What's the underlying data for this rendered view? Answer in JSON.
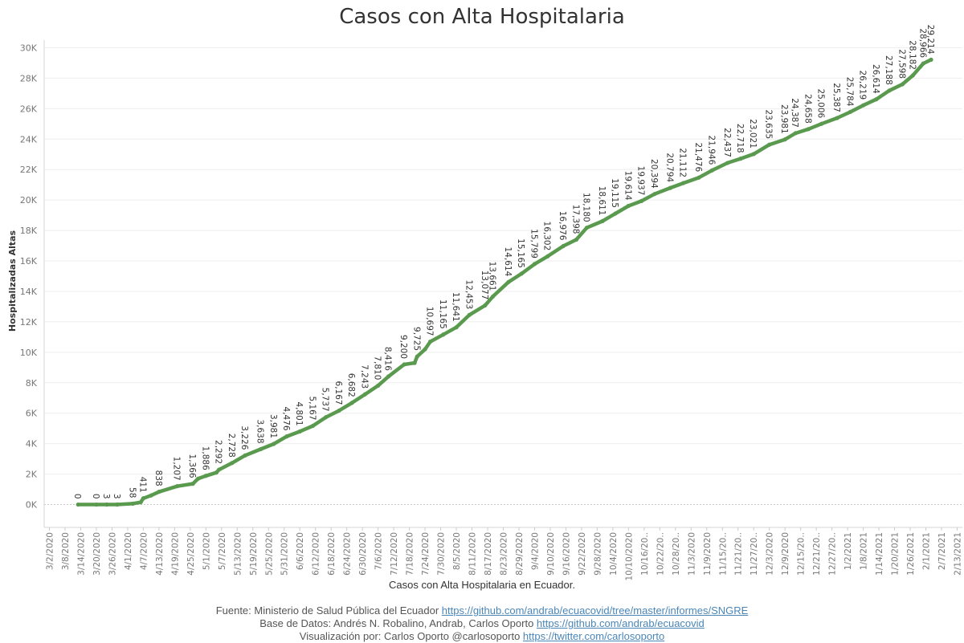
{
  "chart_data": {
    "type": "line",
    "title": "Casos con Alta Hospitalaria",
    "ylabel": "Hospitalizadas Altas",
    "xlabel": "Casos con Alta Hospitalaria en Ecuador.",
    "ylim": [
      -1500,
      30500
    ],
    "y_ticks": [
      0,
      2000,
      4000,
      6000,
      8000,
      10000,
      12000,
      14000,
      16000,
      18000,
      20000,
      22000,
      24000,
      26000,
      28000,
      30000
    ],
    "y_tick_labels": [
      "0K",
      "2K",
      "4K",
      "6K",
      "8K",
      "10K",
      "12K",
      "14K",
      "16K",
      "18K",
      "20K",
      "22K",
      "24K",
      "26K",
      "28K",
      "30K"
    ],
    "x_ticks": [
      "3/2/2020",
      "3/8/2020",
      "3/14/2020",
      "3/20/2020",
      "3/26/2020",
      "4/1/2020",
      "4/7/2020",
      "4/13/2020",
      "4/19/2020",
      "4/25/2020",
      "5/1/2020",
      "5/7/2020",
      "5/13/2020",
      "5/19/2020",
      "5/25/2020",
      "5/31/2020",
      "6/6/2020",
      "6/12/2020",
      "6/18/2020",
      "6/24/2020",
      "6/30/2020",
      "7/6/2020",
      "7/12/2020",
      "7/18/2020",
      "7/24/2020",
      "7/30/2020",
      "8/5/2020",
      "8/11/2020",
      "8/17/2020",
      "8/23/2020",
      "8/29/2020",
      "9/4/2020",
      "9/10/2020",
      "9/16/2020",
      "9/22/2020",
      "9/28/2020",
      "10/4/2020",
      "10/10/2020",
      "10/16/20..",
      "10/22/20..",
      "10/28/20..",
      "11/3/2020",
      "11/9/2020",
      "11/15/20..",
      "11/21/20..",
      "11/27/20..",
      "12/3/2020",
      "12/9/2020",
      "12/15/20..",
      "12/21/20..",
      "12/27/20..",
      "1/2/2021",
      "1/8/2021",
      "1/14/2021",
      "1/20/2021",
      "1/26/2021",
      "2/1/2021",
      "2/7/2021",
      "2/13/2021"
    ],
    "x_range": [
      "2020-02-29",
      "2021-02-15"
    ],
    "grid": true,
    "series": [
      {
        "color": "#5a9a4f",
        "points": [
          [
            "2020-03-13",
            0
          ],
          [
            "2020-03-20",
            0
          ],
          [
            "2020-03-24",
            3
          ],
          [
            "2020-03-28",
            3
          ],
          [
            "2020-04-03",
            58
          ],
          [
            "2020-04-06",
            150
          ],
          [
            "2020-04-07",
            411
          ],
          [
            "2020-04-10",
            600
          ],
          [
            "2020-04-13",
            838
          ],
          [
            "2020-04-20",
            1207
          ],
          [
            "2020-04-26",
            1366
          ],
          [
            "2020-04-28",
            1700
          ],
          [
            "2020-05-01",
            1886
          ],
          [
            "2020-05-05",
            2100
          ],
          [
            "2020-05-06",
            2292
          ],
          [
            "2020-05-11",
            2728
          ],
          [
            "2020-05-16",
            3226
          ],
          [
            "2020-05-22",
            3638
          ],
          [
            "2020-05-27",
            3981
          ],
          [
            "2020-06-01",
            4476
          ],
          [
            "2020-06-06",
            4801
          ],
          [
            "2020-06-11",
            5167
          ],
          [
            "2020-06-16",
            5737
          ],
          [
            "2020-06-21",
            6167
          ],
          [
            "2020-06-26",
            6682
          ],
          [
            "2020-07-01",
            7243
          ],
          [
            "2020-07-06",
            7810
          ],
          [
            "2020-07-10",
            8416
          ],
          [
            "2020-07-16",
            9200
          ],
          [
            "2020-07-20",
            9300
          ],
          [
            "2020-07-21",
            9725
          ],
          [
            "2020-07-24",
            10200
          ],
          [
            "2020-07-26",
            10697
          ],
          [
            "2020-07-31",
            11165
          ],
          [
            "2020-08-05",
            11641
          ],
          [
            "2020-08-10",
            12453
          ],
          [
            "2020-08-16",
            13077
          ],
          [
            "2020-08-19",
            13661
          ],
          [
            "2020-08-25",
            14614
          ],
          [
            "2020-08-30",
            15165
          ],
          [
            "2020-09-04",
            15799
          ],
          [
            "2020-09-09",
            16302
          ],
          [
            "2020-09-15",
            16976
          ],
          [
            "2020-09-20",
            17398
          ],
          [
            "2020-09-24",
            18180
          ],
          [
            "2020-09-30",
            18611
          ],
          [
            "2020-10-05",
            19115
          ],
          [
            "2020-10-10",
            19614
          ],
          [
            "2020-10-15",
            19937
          ],
          [
            "2020-10-20",
            20394
          ],
          [
            "2020-10-26",
            20794
          ],
          [
            "2020-10-31",
            21112
          ],
          [
            "2020-11-06",
            21476
          ],
          [
            "2020-11-11",
            21946
          ],
          [
            "2020-11-17",
            22437
          ],
          [
            "2020-11-22",
            22718
          ],
          [
            "2020-11-27",
            23021
          ],
          [
            "2020-12-03",
            23635
          ],
          [
            "2020-12-09",
            23981
          ],
          [
            "2020-12-13",
            24387
          ],
          [
            "2020-12-18",
            24658
          ],
          [
            "2020-12-23",
            25006
          ],
          [
            "2020-12-29",
            25387
          ],
          [
            "2021-01-03",
            25784
          ],
          [
            "2021-01-08",
            26219
          ],
          [
            "2021-01-13",
            26614
          ],
          [
            "2021-01-18",
            27188
          ],
          [
            "2021-01-23",
            27598
          ],
          [
            "2021-01-27",
            28182
          ],
          [
            "2021-01-31",
            28966
          ],
          [
            "2021-02-03",
            29214
          ]
        ]
      }
    ],
    "labels": [
      [
        "2020-03-13",
        0,
        "0"
      ],
      [
        "2020-03-20",
        0,
        "0"
      ],
      [
        "2020-03-24",
        3,
        "3"
      ],
      [
        "2020-03-28",
        3,
        "3"
      ],
      [
        "2020-04-03",
        58,
        "58"
      ],
      [
        "2020-04-07",
        411,
        "411"
      ],
      [
        "2020-04-13",
        838,
        "838"
      ],
      [
        "2020-04-20",
        1207,
        "1,207"
      ],
      [
        "2020-04-26",
        1366,
        "1,366"
      ],
      [
        "2020-05-01",
        1886,
        "1,886"
      ],
      [
        "2020-05-06",
        2292,
        "2,292"
      ],
      [
        "2020-05-11",
        2728,
        "2,728"
      ],
      [
        "2020-05-16",
        3226,
        "3,226"
      ],
      [
        "2020-05-22",
        3638,
        "3,638"
      ],
      [
        "2020-05-27",
        3981,
        "3,981"
      ],
      [
        "2020-06-01",
        4476,
        "4,476"
      ],
      [
        "2020-06-06",
        4801,
        "4,801"
      ],
      [
        "2020-06-11",
        5167,
        "5,167"
      ],
      [
        "2020-06-16",
        5737,
        "5,737"
      ],
      [
        "2020-06-21",
        6167,
        "6,167"
      ],
      [
        "2020-06-26",
        6682,
        "6,682"
      ],
      [
        "2020-07-01",
        7243,
        "7,243"
      ],
      [
        "2020-07-06",
        7810,
        "7,810"
      ],
      [
        "2020-07-10",
        8416,
        "8,416"
      ],
      [
        "2020-07-16",
        9200,
        "9,200"
      ],
      [
        "2020-07-21",
        9725,
        "9,725"
      ],
      [
        "2020-07-26",
        10697,
        "10,697"
      ],
      [
        "2020-07-31",
        11165,
        "11,165"
      ],
      [
        "2020-08-05",
        11641,
        "11,641"
      ],
      [
        "2020-08-10",
        12453,
        "12,453"
      ],
      [
        "2020-08-16",
        13077,
        "13,077"
      ],
      [
        "2020-08-19",
        13661,
        "13,661"
      ],
      [
        "2020-08-25",
        14614,
        "14,614"
      ],
      [
        "2020-08-30",
        15165,
        "15,165"
      ],
      [
        "2020-09-04",
        15799,
        "15,799"
      ],
      [
        "2020-09-09",
        16302,
        "16,302"
      ],
      [
        "2020-09-15",
        16976,
        "16,976"
      ],
      [
        "2020-09-20",
        17398,
        "17,398"
      ],
      [
        "2020-09-24",
        18180,
        "18,180"
      ],
      [
        "2020-09-30",
        18611,
        "18,611"
      ],
      [
        "2020-10-05",
        19115,
        "19,115"
      ],
      [
        "2020-10-10",
        19614,
        "19,614"
      ],
      [
        "2020-10-15",
        19937,
        "19,937"
      ],
      [
        "2020-10-20",
        20394,
        "20,394"
      ],
      [
        "2020-10-26",
        20794,
        "20,794"
      ],
      [
        "2020-10-31",
        21112,
        "21,112"
      ],
      [
        "2020-11-06",
        21476,
        "21,476"
      ],
      [
        "2020-11-11",
        21946,
        "21,946"
      ],
      [
        "2020-11-17",
        22437,
        "22,437"
      ],
      [
        "2020-11-22",
        22718,
        "22,718"
      ],
      [
        "2020-11-27",
        23021,
        "23,021"
      ],
      [
        "2020-12-03",
        23635,
        "23,635"
      ],
      [
        "2020-12-09",
        23981,
        "23,981"
      ],
      [
        "2020-12-13",
        24387,
        "24,387"
      ],
      [
        "2020-12-18",
        24658,
        "24,658"
      ],
      [
        "2020-12-23",
        25006,
        "25,006"
      ],
      [
        "2020-12-29",
        25387,
        "25,387"
      ],
      [
        "2021-01-03",
        25784,
        "25,784"
      ],
      [
        "2021-01-08",
        26219,
        "26,219"
      ],
      [
        "2021-01-13",
        26614,
        "26,614"
      ],
      [
        "2021-01-18",
        27188,
        "27,188"
      ],
      [
        "2021-01-23",
        27598,
        "27,598"
      ],
      [
        "2021-01-27",
        28182,
        "28,182"
      ],
      [
        "2021-01-31",
        28966,
        "28,966"
      ],
      [
        "2021-02-03",
        29214,
        "29,214"
      ]
    ]
  },
  "credits": {
    "source_prefix": "Fuente: Ministerio de Salud Pública del Ecuador ",
    "source_link": "https://github.com/andrab/ecuacovid/tree/master/informes/SNGRE",
    "database_prefix": "Base de Datos: Andrés N. Robalino, Andrab, Carlos Oporto ",
    "database_link": "https://github.com/andrab/ecuacovid",
    "viz_prefix": "Visualización por: Carlos Oporto @carlosoporto ",
    "viz_link": "https://twitter.com/carlosoporto"
  }
}
